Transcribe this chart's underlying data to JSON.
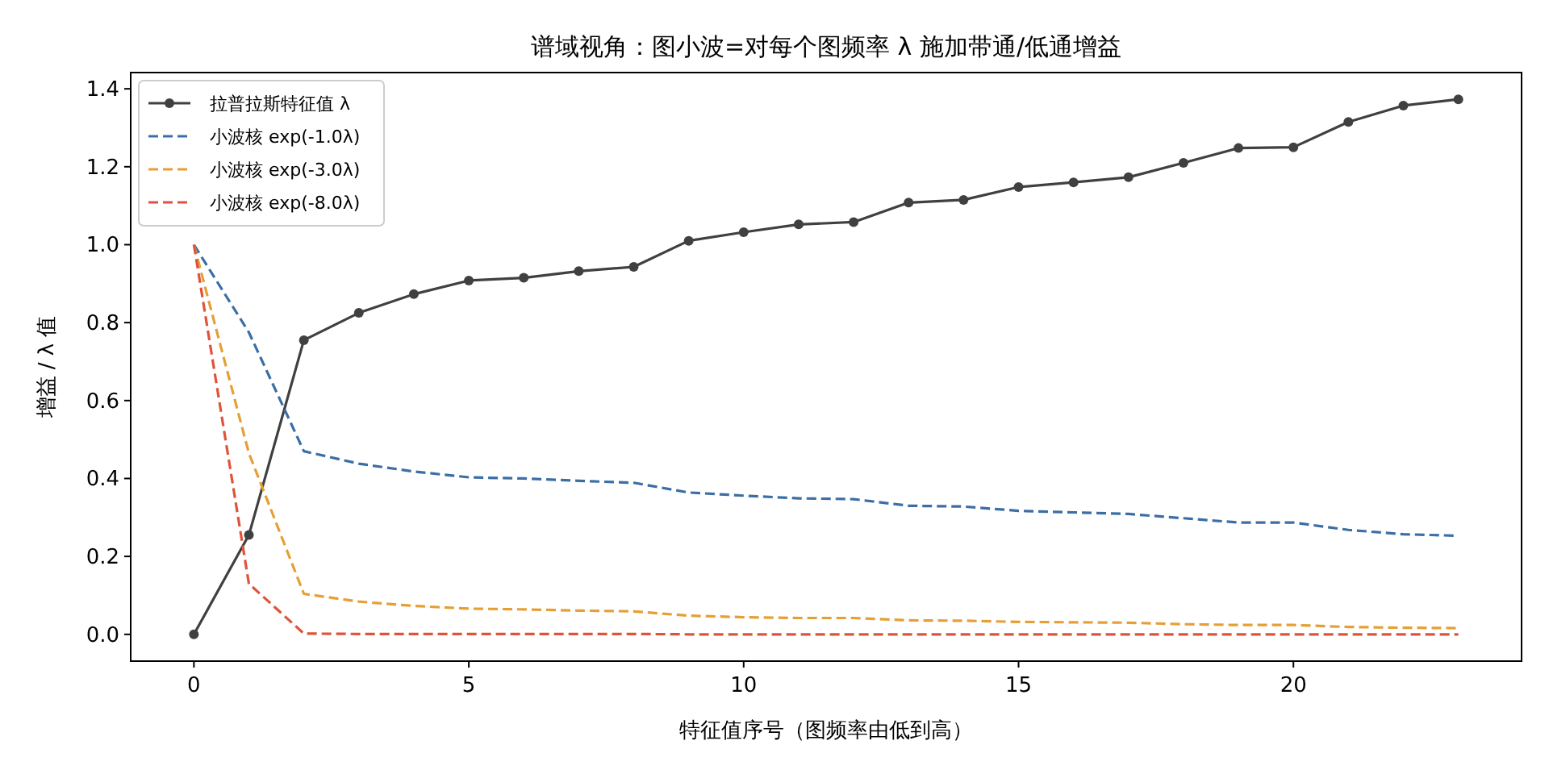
{
  "chart_data": {
    "type": "line",
    "title": "谱域视角：图小波=对每个图频率 λ 施加带通/低通增益",
    "xlabel": "特征值序号（图频率由低到高）",
    "ylabel": "增益 / λ 值",
    "x": [
      0,
      1,
      2,
      3,
      4,
      5,
      6,
      7,
      8,
      9,
      10,
      11,
      12,
      13,
      14,
      15,
      16,
      17,
      18,
      19,
      20,
      21,
      22,
      23
    ],
    "xlim": [
      -1.15,
      24.15
    ],
    "ylim": [
      -0.0687,
      1.4417
    ],
    "xticks": [
      0,
      5,
      10,
      15,
      20
    ],
    "yticks": [
      {
        "value": 0,
        "label": "0.0"
      },
      {
        "value": 0.2,
        "label": "0.2"
      },
      {
        "value": 0.4,
        "label": "0.4"
      },
      {
        "value": 0.6,
        "label": "0.6"
      },
      {
        "value": 0.8,
        "label": "0.8"
      },
      {
        "value": 1.0,
        "label": "1.0"
      },
      {
        "value": 1.2,
        "label": "1.2"
      },
      {
        "value": 1.4,
        "label": "1.4"
      }
    ],
    "grid": false,
    "legend": "top left",
    "series": [
      {
        "name": "拉普拉斯特征值 λ",
        "color": "#404040",
        "marker": "circle",
        "line_style": "solid",
        "values": [
          0,
          0.255,
          0.755,
          0.825,
          0.873,
          0.908,
          0.915,
          0.932,
          0.943,
          1.01,
          1.032,
          1.052,
          1.058,
          1.108,
          1.115,
          1.148,
          1.16,
          1.173,
          1.21,
          1.248,
          1.25,
          1.315,
          1.357,
          1.373
        ]
      },
      {
        "name": "小波核 exp(-1.0λ)",
        "color": "#3a6ea5",
        "marker": "none",
        "line_style": "dashed",
        "values": [
          1,
          0.775,
          0.47,
          0.438,
          0.418,
          0.403,
          0.4,
          0.394,
          0.389,
          0.364,
          0.356,
          0.349,
          0.347,
          0.33,
          0.328,
          0.317,
          0.313,
          0.309,
          0.298,
          0.287,
          0.287,
          0.268,
          0.257,
          0.253
        ]
      },
      {
        "name": "小波核 exp(-3.0λ)",
        "color": "#e69f35",
        "marker": "none",
        "line_style": "dashed",
        "values": [
          1,
          0.465,
          0.104,
          0.084,
          0.073,
          0.066,
          0.064,
          0.061,
          0.059,
          0.048,
          0.044,
          0.042,
          0.042,
          0.036,
          0.035,
          0.032,
          0.031,
          0.03,
          0.026,
          0.024,
          0.024,
          0.019,
          0.017,
          0.016
        ]
      },
      {
        "name": "小波核 exp(-8.0λ)",
        "color": "#e0533b",
        "marker": "none",
        "line_style": "dashed",
        "values": [
          1,
          0.13,
          0.002,
          0.001,
          0.001,
          0.001,
          0.001,
          0.001,
          0.001,
          0,
          0,
          0,
          0,
          0,
          0,
          0,
          0,
          0,
          0,
          0,
          0,
          0,
          0,
          0
        ]
      }
    ]
  }
}
